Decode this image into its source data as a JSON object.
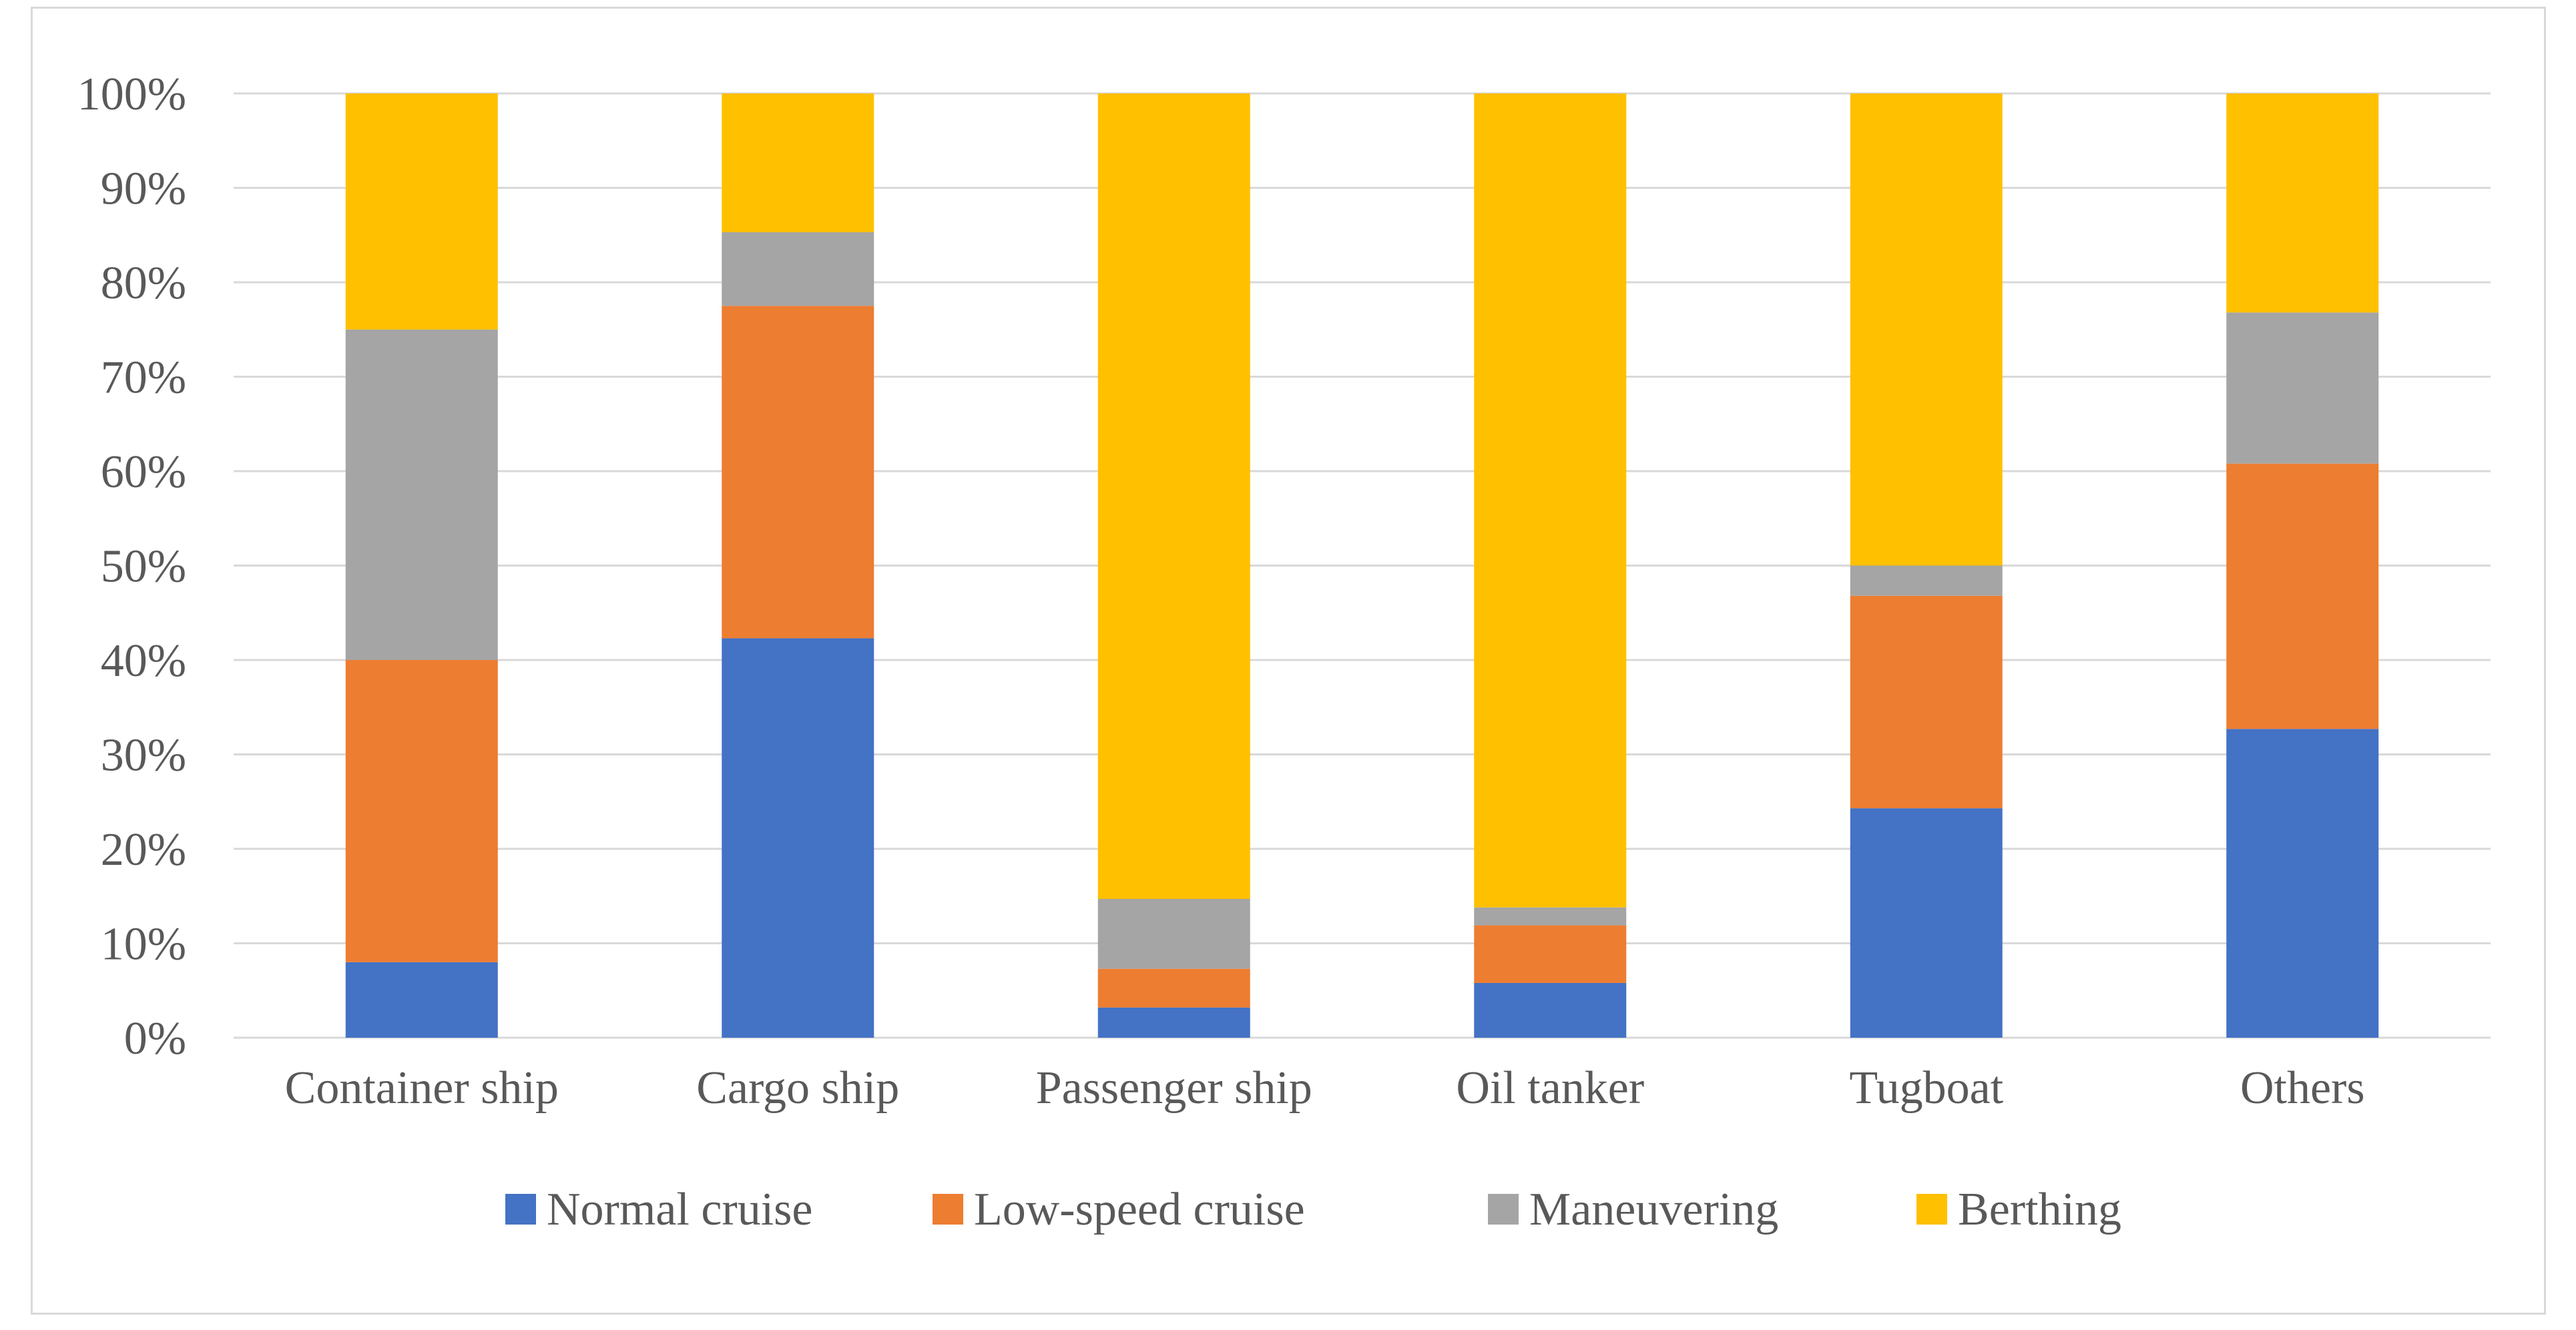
{
  "chart_data": {
    "type": "bar",
    "stacked": true,
    "title": "",
    "xlabel": "",
    "ylabel": "",
    "ylim": [
      0,
      100
    ],
    "y_ticks": [
      "0%",
      "10%",
      "20%",
      "30%",
      "40%",
      "50%",
      "60%",
      "70%",
      "80%",
      "90%",
      "100%"
    ],
    "grid": true,
    "legend_position": "bottom",
    "categories": [
      "Container ship",
      "Cargo ship",
      "Passenger ship",
      "Oil tanker",
      "Tugboat",
      "Others"
    ],
    "series": [
      {
        "name": "Normal cruise",
        "color": "#4472c4",
        "values": [
          8.0,
          42.3,
          3.2,
          5.8,
          24.3,
          32.7
        ]
      },
      {
        "name": "Low-speed cruise",
        "color": "#ed7d31",
        "values": [
          32.0,
          35.2,
          4.1,
          6.1,
          22.5,
          28.1
        ]
      },
      {
        "name": "Maneuvering",
        "color": "#a5a5a5",
        "values": [
          35.0,
          7.8,
          7.4,
          1.9,
          3.2,
          16.0
        ]
      },
      {
        "name": "Berthing",
        "color": "#ffc000",
        "values": [
          25.0,
          14.7,
          85.3,
          86.2,
          50.0,
          23.2
        ]
      }
    ]
  }
}
